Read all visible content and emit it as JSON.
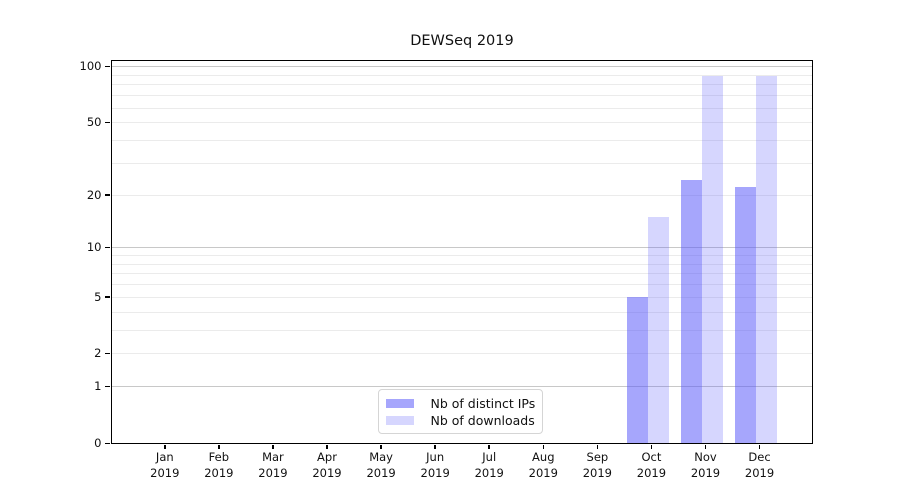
{
  "chart_data": {
    "type": "bar",
    "title": "DEWSeq 2019",
    "categories": [
      "Jan",
      "Feb",
      "Mar",
      "Apr",
      "May",
      "Jun",
      "Jul",
      "Aug",
      "Sep",
      "Oct",
      "Nov",
      "Dec"
    ],
    "category_year": "2019",
    "series": [
      {
        "name": "Nb of distinct IPs",
        "color": "rgba(85,85,250,0.52)",
        "values": [
          0,
          0,
          0,
          0,
          0,
          0,
          0,
          0,
          0,
          5,
          24,
          22
        ]
      },
      {
        "name": "Nb of downloads",
        "color": "rgba(85,85,250,0.24)",
        "values": [
          0,
          0,
          0,
          0,
          0,
          0,
          0,
          0,
          0,
          15,
          89,
          89
        ]
      }
    ],
    "yscale": "log1p",
    "yticks": [
      0,
      1,
      2,
      5,
      10,
      20,
      50,
      100
    ],
    "ylim": [
      0,
      107
    ],
    "xlabel": "",
    "ylabel": "",
    "grid": true,
    "legend_position": "lower center",
    "axis_color": "#000000",
    "grid_minor_color": "#ebebeb",
    "grid_major_color": "#c8c8c8"
  }
}
